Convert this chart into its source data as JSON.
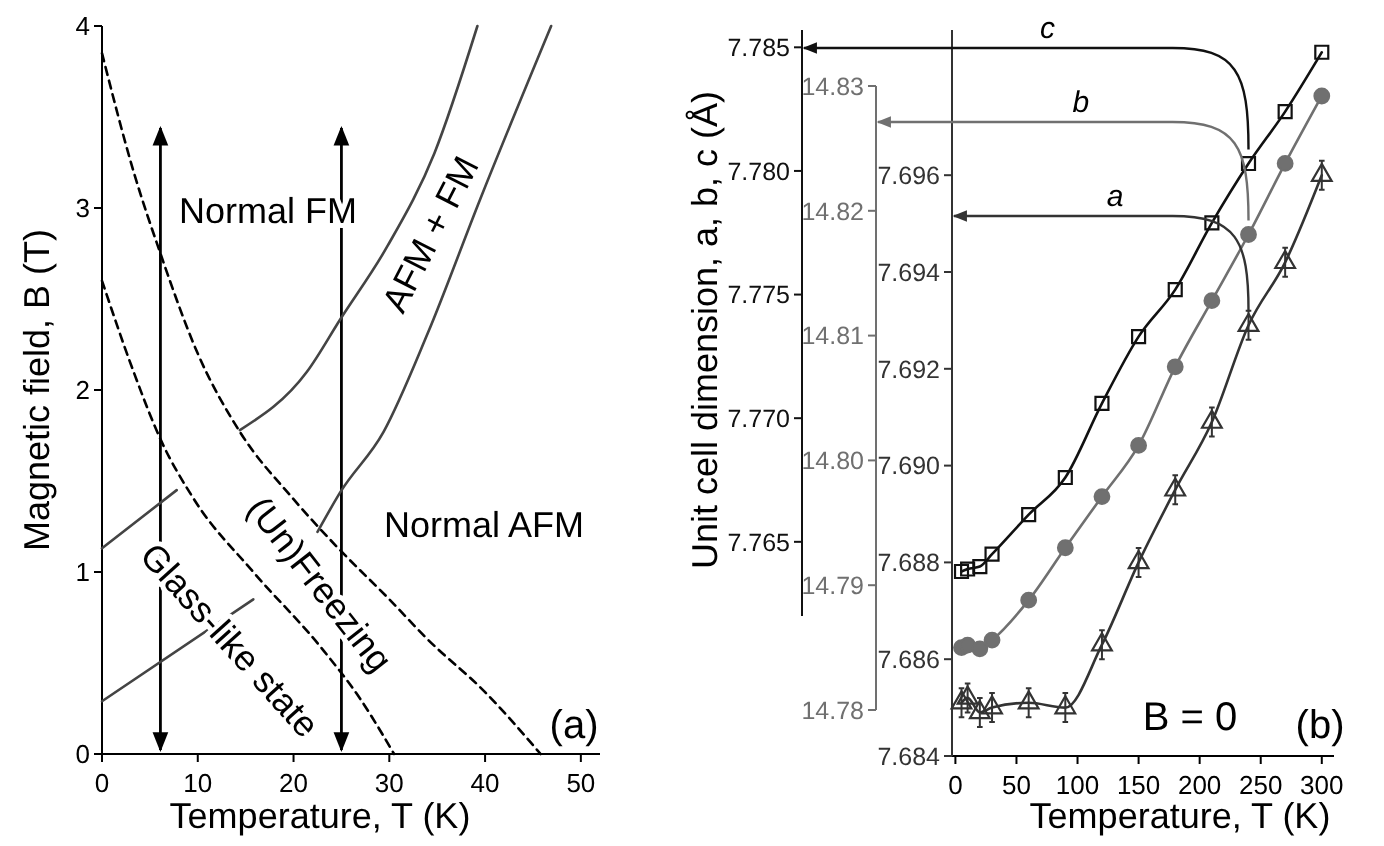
{
  "chart_data": [
    {
      "type": "line",
      "xlabel": "Temperature, T (K)",
      "ylabel": "Magnetic field, B (T)",
      "xlim": [
        0,
        52
      ],
      "xticks": [
        0,
        10,
        20,
        30,
        40,
        50
      ],
      "ylim": [
        0,
        4
      ],
      "yticks": [
        0,
        1,
        2,
        3,
        4
      ],
      "marker": "none",
      "series": [
        {
          "color": "#000000",
          "line_style": "dashed",
          "x": [
            0,
            3.3,
            6.1,
            10,
            14.4,
            20,
            24.5,
            30,
            34,
            40,
            45.8
          ],
          "values": [
            3.85,
            3.2,
            2.75,
            2.2,
            1.77,
            1.4,
            1.14,
            0.85,
            0.63,
            0.34,
            0
          ]
        },
        {
          "color": "#000000",
          "line_style": "dashed",
          "x": [
            0,
            3.3,
            6.1,
            9.6,
            15.8,
            22.8,
            27,
            30.5
          ],
          "values": [
            2.6,
            2.1,
            1.73,
            1.4,
            1.0,
            0.59,
            0.3,
            0
          ]
        },
        {
          "color": "#444444",
          "line_style": "solid",
          "x": [
            0,
            15.8
          ],
          "values": [
            0.29,
            0.85
          ]
        },
        {
          "color": "#444444",
          "line_style": "solid",
          "x": [
            0,
            7.8
          ],
          "values": [
            1.13,
            1.45
          ]
        },
        {
          "color": "#444444",
          "line_style": "solid",
          "x": [
            14.4,
            21.4,
            24.9,
            29.8,
            34.7,
            39.2
          ],
          "values": [
            1.78,
            2.1,
            2.39,
            2.79,
            3.3,
            4.0
          ]
        },
        {
          "color": "#444444",
          "line_style": "solid",
          "x": [
            22.5,
            24.9,
            29.4,
            34,
            39.5,
            46.9
          ],
          "values": [
            1.22,
            1.44,
            1.77,
            2.31,
            3.05,
            4.0
          ]
        }
      ],
      "ref_lines": [
        {
          "axis": "x",
          "value": 6.1
        },
        {
          "axis": "x",
          "value": 25
        }
      ],
      "annotations": [
        "Normal FM",
        "AFM + FM",
        "Normal AFM",
        "(Un)Freezing",
        "Glass-like state",
        "(a)"
      ]
    },
    {
      "type": "line",
      "xlabel": "Temperature, T (K)",
      "y3label": "Unit cell dimension, a, b, c (Å)",
      "xlim": [
        0,
        310
      ],
      "xticks": [
        0,
        50,
        100,
        150,
        200,
        250,
        300
      ],
      "ylim": [
        7.684,
        7.699
      ],
      "yticks": [
        7.684,
        7.686,
        7.688,
        {
          "value": 7.69,
          "label": "7.690"
        },
        7.692,
        7.694,
        7.696
      ],
      "y2lim": [
        14.78,
        14.83
      ],
      "y2ticks": [
        14.78,
        14.79,
        {
          "value": 14.8,
          "label": "14.80"
        },
        14.81,
        14.82,
        14.83
      ],
      "y3lim": [
        7.762,
        7.7857
      ],
      "y3ticks": [
        7.765,
        {
          "value": 7.77,
          "label": "7.770"
        },
        7.775,
        {
          "value": 7.78,
          "label": "7.780"
        },
        7.785
      ],
      "series": [
        {
          "color": "#111111",
          "axis": "y3",
          "marker": "square",
          "x": [
            5,
            10,
            20,
            30,
            60,
            90,
            120,
            150,
            180,
            210,
            240,
            270,
            300
          ],
          "values": [
            7.7638,
            7.7639,
            7.764,
            7.7645,
            7.7661,
            7.7676,
            7.7706,
            7.7733,
            7.7752,
            7.7779,
            7.7803,
            7.7824,
            7.7848
          ]
        },
        {
          "color": "#707070",
          "axis": "y2",
          "marker": "circle",
          "x": [
            5,
            10,
            20,
            30,
            60,
            90,
            120,
            150,
            180,
            210,
            240,
            270,
            300
          ],
          "values": [
            14.785,
            14.7852,
            14.7849,
            14.7856,
            14.7888,
            14.793,
            14.7971,
            14.8012,
            14.8075,
            14.8128,
            14.8181,
            14.8238,
            14.8292
          ]
        },
        {
          "color": "#333333",
          "axis": "y",
          "marker": "triangle",
          "x": [
            5,
            10,
            20,
            30,
            60,
            90,
            120,
            150,
            180,
            210,
            240,
            270,
            300
          ],
          "values": [
            7.6851,
            7.6852,
            7.6849,
            7.685,
            7.6851,
            7.685,
            7.6863,
            7.688,
            7.6895,
            7.6909,
            7.6929,
            7.6942,
            7.696
          ],
          "errors": [
            0.0003,
            0.0003,
            0.0003,
            0.0003,
            0.0003,
            0.0003,
            0.0003,
            0.0003,
            0.0003,
            0.0003,
            0.0003,
            0.0003,
            0.0003
          ]
        }
      ],
      "annotations": [
        "c",
        "b",
        "a",
        "B = 0",
        "(b)"
      ]
    }
  ]
}
